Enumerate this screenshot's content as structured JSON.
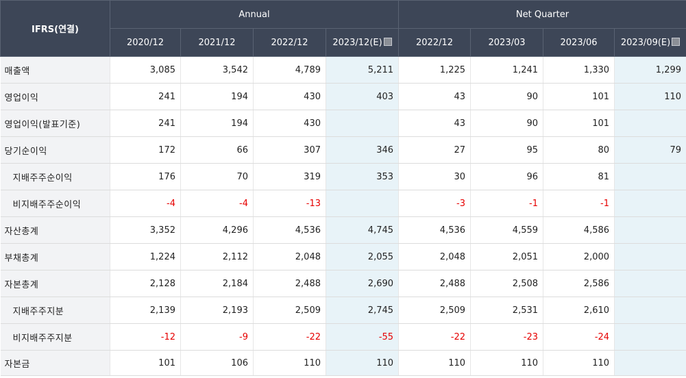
{
  "header": {
    "corner": "IFRS(연결)",
    "annual_label": "Annual",
    "quarter_label": "Net Quarter",
    "annual_periods": [
      "2020/12",
      "2021/12",
      "2022/12",
      "2023/12(E)"
    ],
    "quarter_periods": [
      "2022/12",
      "2023/03",
      "2023/06",
      "2023/09(E)"
    ],
    "estimate_icon": "info-square-icon"
  },
  "rows": [
    {
      "label": "매출액",
      "sub": false,
      "values": [
        "3,085",
        "3,542",
        "4,789",
        "5,211",
        "1,225",
        "1,241",
        "1,330",
        "1,299"
      ]
    },
    {
      "label": "영업이익",
      "sub": false,
      "values": [
        "241",
        "194",
        "430",
        "403",
        "43",
        "90",
        "101",
        "110"
      ]
    },
    {
      "label": "영업이익(발표기준)",
      "sub": false,
      "values": [
        "241",
        "194",
        "430",
        "",
        "43",
        "90",
        "101",
        ""
      ]
    },
    {
      "label": "당기순이익",
      "sub": false,
      "values": [
        "172",
        "66",
        "307",
        "346",
        "27",
        "95",
        "80",
        "79"
      ]
    },
    {
      "label": "지배주주순이익",
      "sub": true,
      "values": [
        "176",
        "70",
        "319",
        "353",
        "30",
        "96",
        "81",
        ""
      ]
    },
    {
      "label": "비지배주주순이익",
      "sub": true,
      "values": [
        "-4",
        "-4",
        "-13",
        "",
        "-3",
        "-1",
        "-1",
        ""
      ]
    },
    {
      "label": "자산총계",
      "sub": false,
      "values": [
        "3,352",
        "4,296",
        "4,536",
        "4,745",
        "4,536",
        "4,559",
        "4,586",
        ""
      ]
    },
    {
      "label": "부채총계",
      "sub": false,
      "values": [
        "1,224",
        "2,112",
        "2,048",
        "2,055",
        "2,048",
        "2,051",
        "2,000",
        ""
      ]
    },
    {
      "label": "자본총계",
      "sub": false,
      "values": [
        "2,128",
        "2,184",
        "2,488",
        "2,690",
        "2,488",
        "2,508",
        "2,586",
        ""
      ]
    },
    {
      "label": "지배주주지분",
      "sub": true,
      "values": [
        "2,139",
        "2,193",
        "2,509",
        "2,745",
        "2,509",
        "2,531",
        "2,610",
        ""
      ]
    },
    {
      "label": "비지배주주지분",
      "sub": true,
      "values": [
        "-12",
        "-9",
        "-22",
        "-55",
        "-22",
        "-23",
        "-24",
        ""
      ]
    },
    {
      "label": "자본금",
      "sub": false,
      "values": [
        "101",
        "106",
        "110",
        "110",
        "110",
        "110",
        "110",
        ""
      ]
    }
  ],
  "colors": {
    "header_bg": "#3d4657",
    "estimate_bg": "#e8f3f8",
    "label_bg": "#f2f3f5",
    "negative": "#e60000"
  }
}
